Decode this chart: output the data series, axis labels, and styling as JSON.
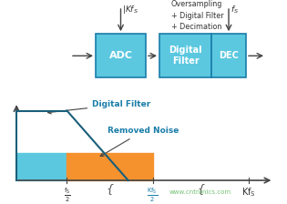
{
  "bg_color": "#ffffff",
  "cyan_color": "#5BC8E0",
  "orange_color": "#F5922E",
  "box_fill": "#5BC8E0",
  "box_edge": "#1A7DA8",
  "text_white": "#ffffff",
  "text_dark": "#1A5F7A",
  "text_cyan_bold": "#1A7DA8",
  "arrow_color": "#444444",
  "oversampling_text": "Oversampling\n+ Digital Filter\n+ Decimation",
  "adc_label": "ADC",
  "df_label": "Digital\nFilter",
  "dec_label": "DEC",
  "digital_filter_label": "Digital Filter",
  "removed_noise_label": "Removed Noise",
  "watermark": "www.cntronics.com",
  "watermark_color": "#5CB85C",
  "filter_line_color": "#1A5F7A",
  "axis_color": "#444444"
}
